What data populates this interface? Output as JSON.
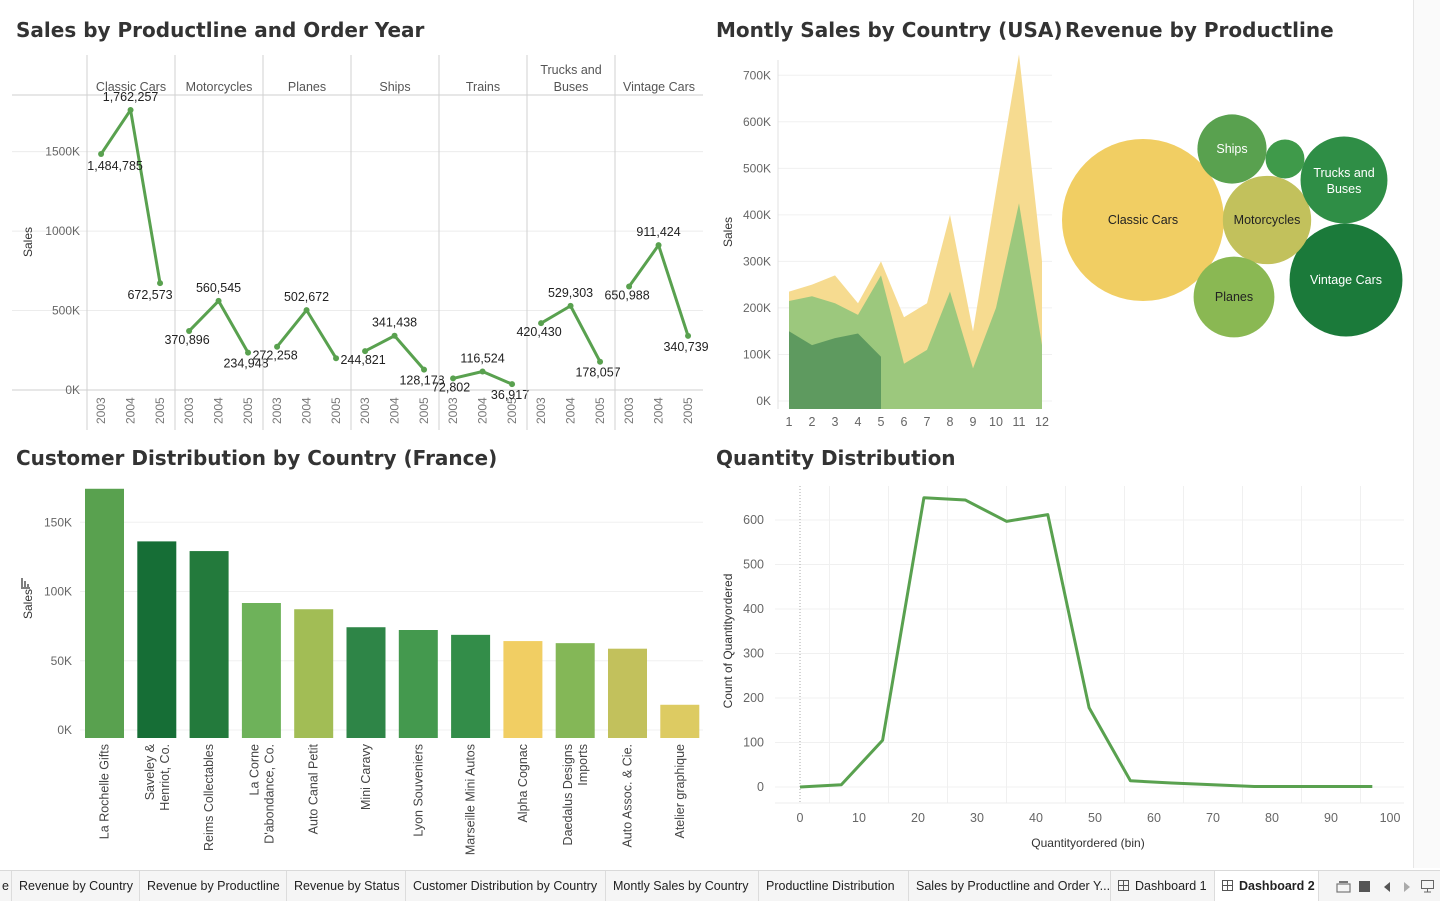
{
  "titles": {
    "sales_by_productline": "Sales by Productline and Order Year",
    "monthly_sales": "Montly Sales by Country (USA)",
    "revenue_by_productline": "Revenue by Productline",
    "customer_distribution": "Customer Distribution by Country (France)",
    "quantity_distribution": "Quantity Distribution"
  },
  "colors": {
    "green_line": "#59a14f",
    "dark_green": "#1b7a3a",
    "gold": "#f1ce63",
    "light_gold": "#f5d98a",
    "mid_green": "#8cc47a"
  },
  "chart_data": [
    {
      "id": "sales_by_productline",
      "type": "line",
      "title": "Sales by Productline and Order Year",
      "ylabel": "Sales",
      "ylim": [
        0,
        1850000
      ],
      "yticks": [
        0,
        500000,
        1000000,
        1500000
      ],
      "ytick_labels": [
        "0K",
        "500K",
        "1000K",
        "1500K"
      ],
      "years": [
        "2003",
        "2004",
        "2005"
      ],
      "panels": [
        {
          "name": "Classic Cars",
          "values": [
            1484785,
            1762257,
            672573
          ],
          "labels": [
            "1,484,785",
            "1,762,257",
            "672,573"
          ]
        },
        {
          "name": "Motorcycles",
          "values": [
            370896,
            560545,
            234948
          ],
          "labels": [
            "370,896",
            "560,545",
            "234,948"
          ]
        },
        {
          "name": "Planes",
          "values": [
            272258,
            502672,
            200000
          ],
          "labels": [
            "272,258",
            "502,672",
            ""
          ]
        },
        {
          "name": "Ships",
          "values": [
            244821,
            341438,
            128178
          ],
          "labels": [
            "244,821",
            "341,438",
            "128,178"
          ]
        },
        {
          "name": "Trains",
          "values": [
            72802,
            116524,
            36917
          ],
          "labels": [
            "72,802",
            "116,524",
            "36,917"
          ]
        },
        {
          "name": "Trucks and Buses",
          "values": [
            420430,
            529303,
            178057
          ],
          "labels": [
            "420,430",
            "529,303",
            "178,057"
          ]
        },
        {
          "name": "Vintage Cars",
          "values": [
            650988,
            911424,
            340739
          ],
          "labels": [
            "650,988",
            "911,424",
            "340,739"
          ]
        }
      ]
    },
    {
      "id": "monthly_sales",
      "type": "area",
      "title": "Montly Sales by Country (USA)",
      "ylabel": "Sales",
      "ylim": [
        0,
        750000
      ],
      "yticks": [
        0,
        100000,
        200000,
        300000,
        400000,
        500000,
        600000,
        700000
      ],
      "ytick_labels": [
        "0K",
        "100K",
        "200K",
        "300K",
        "400K",
        "500K",
        "600K",
        "700K"
      ],
      "x": [
        1,
        2,
        3,
        4,
        5,
        6,
        7,
        8,
        9,
        10,
        11,
        12
      ],
      "series": [
        {
          "values": [
            235000,
            250000,
            270000,
            210000,
            300000,
            180000,
            210000,
            400000,
            150000,
            450000,
            745000,
            300000
          ]
        },
        {
          "values": [
            215000,
            225000,
            210000,
            185000,
            270000,
            80000,
            110000,
            235000,
            70000,
            200000,
            425000,
            120000
          ]
        },
        {
          "values": [
            150000,
            120000,
            135000,
            145000,
            95000,
            null,
            null,
            null,
            null,
            null,
            null,
            null
          ]
        }
      ]
    },
    {
      "id": "revenue_by_productline",
      "type": "bubble",
      "title": "Revenue by Productline",
      "items": [
        {
          "name": "Classic Cars",
          "label": "Classic Cars",
          "value": 3919615,
          "color": "#f1ce63"
        },
        {
          "name": "Vintage Cars",
          "label": "Vintage Cars",
          "value": 1903151,
          "color": "#1b7a3a"
        },
        {
          "name": "Motorcycles",
          "label": "Motorcycles",
          "value": 1166389,
          "color": "#c2c15c"
        },
        {
          "name": "Trucks and Buses",
          "label": "Trucks and Buses",
          "value": 1127790,
          "color": "#2f8e46"
        },
        {
          "name": "Planes",
          "label": "Planes",
          "value": 975004,
          "color": "#8ab853"
        },
        {
          "name": "Ships",
          "label": "Ships",
          "value": 714437,
          "color": "#59a14f"
        },
        {
          "name": "Trains",
          "label": "",
          "value": 226243,
          "color": "#3f9a4a"
        }
      ]
    },
    {
      "id": "customer_distribution",
      "type": "bar",
      "title": "Customer Distribution by Country (France)",
      "ylabel": "Sales",
      "ylim": [
        0,
        182000
      ],
      "yticks": [
        0,
        50000,
        100000,
        150000
      ],
      "ytick_labels": [
        "0K",
        "50K",
        "100K",
        "150K"
      ],
      "categories": [
        "La Rochelle Gifts",
        "Saveley & Henriot, Co.",
        "Reims Collectables",
        "La Corne D'abondance, Co.",
        "Auto Canal Petit",
        "Mini Caravy",
        "Lyon Souveniers",
        "Marseille Mini Autos",
        "Alpha Cognac",
        "Daedalus Designs Imports",
        "Auto Assoc. & Cie.",
        "Atelier graphique"
      ],
      "values": [
        180000,
        142000,
        135000,
        97500,
        93000,
        80000,
        78000,
        74500,
        70000,
        68500,
        64500,
        24000
      ],
      "bar_colors": [
        "#59a14f",
        "#166e36",
        "#237a3c",
        "#6eb25a",
        "#a2bd55",
        "#2e8547",
        "#44994e",
        "#338d49",
        "#f1ce63",
        "#84b757",
        "#c2c15c",
        "#ddcb62"
      ]
    },
    {
      "id": "quantity_distribution",
      "type": "line",
      "title": "Quantity Distribution",
      "xlabel": "Quantityordered (bin)",
      "ylabel": "Count of Quantityordered",
      "xlim": [
        -5,
        102
      ],
      "ylim": [
        -15,
        680
      ],
      "xticks": [
        0,
        10,
        20,
        30,
        40,
        50,
        60,
        70,
        80,
        90,
        100
      ],
      "yticks": [
        0,
        100,
        200,
        300,
        400,
        500,
        600
      ],
      "x": [
        0,
        7,
        14,
        21,
        28,
        35,
        42,
        49,
        56,
        63,
        70,
        77,
        84,
        91,
        97
      ],
      "y": [
        0,
        5,
        105,
        650,
        645,
        597,
        612,
        178,
        14,
        9,
        5,
        1,
        1,
        1,
        1
      ]
    }
  ],
  "tabs": [
    {
      "label": "e",
      "icon": false,
      "active": false
    },
    {
      "label": "Revenue by Country",
      "icon": false,
      "active": false
    },
    {
      "label": "Revenue by Productline",
      "icon": false,
      "active": false
    },
    {
      "label": "Revenue by Status",
      "icon": false,
      "active": false
    },
    {
      "label": "Customer Distribution by Country",
      "icon": false,
      "active": false
    },
    {
      "label": "Montly Sales by Country",
      "icon": false,
      "active": false
    },
    {
      "label": "Productline Distribution",
      "icon": false,
      "active": false
    },
    {
      "label": "Sales by Productline and Order Y...",
      "icon": false,
      "active": false
    },
    {
      "label": "Dashboard 1",
      "icon": true,
      "active": false
    },
    {
      "label": "Dashboard 2",
      "icon": true,
      "active": true
    }
  ],
  "nav_icons": [
    "filmstrip-icon",
    "grid-view-icon",
    "prev-sheet-icon",
    "next-sheet-icon",
    "present-icon"
  ]
}
